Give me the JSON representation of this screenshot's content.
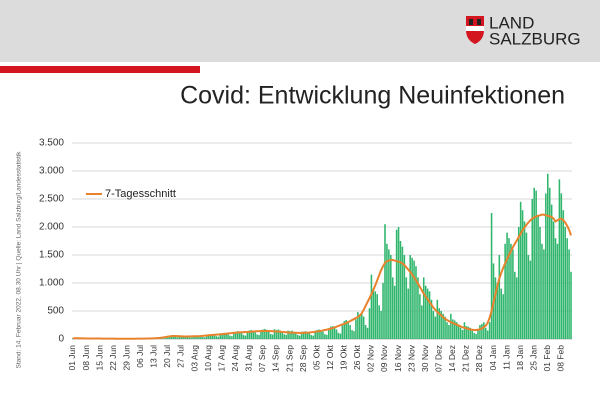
{
  "logo": {
    "line1": "LAND",
    "line2": "SALZBURG"
  },
  "source_note": "Stand: 14. Februar 2022, 08.30 Uhr | Quelle: Land Salzburg/Landesstatistik",
  "chart_data": {
    "type": "bar",
    "title": "Covid: Entwicklung Neuinfektionen",
    "color": "#2fb56c",
    "ylim": [
      0,
      3500
    ],
    "yticks": [
      0,
      500,
      {
        "value": 1000,
        "label": "1.000"
      },
      {
        "value": 1500,
        "label": "1.500"
      },
      {
        "value": 2000,
        "label": "2.000"
      },
      {
        "value": 2500,
        "label": "2.500"
      },
      {
        "value": 3000,
        "label": "3.000"
      },
      {
        "value": 3500,
        "label": "3.500"
      }
    ],
    "grid": true,
    "legend": "upper left",
    "categories": [
      "01 Jun",
      null,
      null,
      null,
      null,
      null,
      null,
      "08 Jun",
      null,
      null,
      null,
      null,
      null,
      null,
      "15 Jun",
      null,
      null,
      null,
      null,
      null,
      null,
      "22 Jun",
      null,
      null,
      null,
      null,
      null,
      null,
      "29 Jun",
      null,
      null,
      null,
      null,
      null,
      null,
      "06 Jul",
      null,
      null,
      null,
      null,
      null,
      null,
      "13 Jul",
      null,
      null,
      null,
      null,
      null,
      null,
      "20 Jul",
      null,
      null,
      null,
      null,
      null,
      null,
      "27 Jul",
      null,
      null,
      null,
      null,
      null,
      null,
      "03 Aug",
      null,
      null,
      null,
      null,
      null,
      null,
      "10 Aug",
      null,
      null,
      null,
      null,
      null,
      null,
      "17 Aug",
      null,
      null,
      null,
      null,
      null,
      null,
      "24 Aug",
      null,
      null,
      null,
      null,
      null,
      null,
      "31 Aug",
      null,
      null,
      null,
      null,
      null,
      null,
      "07 Sep",
      null,
      null,
      null,
      null,
      null,
      null,
      "14 Sep",
      null,
      null,
      null,
      null,
      null,
      null,
      "21 Sep",
      null,
      null,
      null,
      null,
      null,
      null,
      "28 Sep",
      null,
      null,
      null,
      null,
      null,
      null,
      "05 Okt",
      null,
      null,
      null,
      null,
      null,
      null,
      "12 Okt",
      null,
      null,
      null,
      null,
      null,
      null,
      "19 Okt",
      null,
      null,
      null,
      null,
      null,
      null,
      "26 Okt",
      null,
      null,
      null,
      null,
      null,
      null,
      "02 Nov",
      null,
      null,
      null,
      null,
      null,
      null,
      "09 Nov",
      null,
      null,
      null,
      null,
      null,
      null,
      "16 Nov",
      null,
      null,
      null,
      null,
      null,
      null,
      "23 Nov",
      null,
      null,
      null,
      null,
      null,
      null,
      "30 Nov",
      null,
      null,
      null,
      null,
      null,
      null,
      "07 Dez",
      null,
      null,
      null,
      null,
      null,
      null,
      "14 Dez",
      null,
      null,
      null,
      null,
      null,
      null,
      "21 Dez",
      null,
      null,
      null,
      null,
      null,
      null,
      "28 Dez",
      null,
      null,
      null,
      null,
      null,
      null,
      "04 Jan",
      null,
      null,
      null,
      null,
      null,
      null,
      "11 Jan",
      null,
      null,
      null,
      null,
      null,
      null,
      "18 Jan",
      null,
      null,
      null,
      null,
      null,
      null,
      "25 Jan",
      null,
      null,
      null,
      null,
      null,
      null,
      "01 Feb",
      null,
      null,
      null,
      null,
      null,
      null,
      "08 Feb",
      null,
      null,
      null,
      null,
      null
    ],
    "values": [
      18,
      20,
      15,
      12,
      8,
      6,
      14,
      12,
      14,
      10,
      9,
      6,
      4,
      8,
      9,
      10,
      8,
      7,
      5,
      3,
      6,
      7,
      8,
      6,
      5,
      4,
      3,
      5,
      6,
      7,
      5,
      6,
      4,
      3,
      6,
      8,
      10,
      9,
      8,
      6,
      5,
      12,
      18,
      22,
      25,
      20,
      14,
      10,
      30,
      55,
      60,
      70,
      50,
      35,
      30,
      65,
      60,
      55,
      50,
      45,
      30,
      25,
      50,
      55,
      60,
      58,
      50,
      35,
      30,
      60,
      75,
      80,
      85,
      70,
      50,
      40,
      80,
      100,
      110,
      105,
      90,
      60,
      50,
      110,
      130,
      140,
      125,
      110,
      70,
      60,
      140,
      150,
      160,
      145,
      120,
      80,
      70,
      160,
      170,
      180,
      165,
      140,
      90,
      80,
      175,
      160,
      170,
      150,
      130,
      85,
      75,
      150,
      140,
      150,
      130,
      110,
      70,
      60,
      130,
      130,
      140,
      125,
      105,
      70,
      60,
      140,
      160,
      170,
      160,
      130,
      85,
      75,
      175,
      220,
      230,
      210,
      170,
      110,
      95,
      240,
      320,
      340,
      300,
      250,
      160,
      140,
      350,
      480,
      420,
      450,
      400,
      250,
      200,
      550,
      1150,
      900,
      850,
      800,
      600,
      500,
      1000,
      2050,
      1700,
      1600,
      1500,
      1100,
      950,
      1950,
      2000,
      1750,
      1650,
      1500,
      1100,
      900,
      1500,
      1450,
      1400,
      1300,
      1100,
      800,
      600,
      1100,
      950,
      900,
      850,
      700,
      500,
      400,
      700,
      550,
      500,
      450,
      400,
      300,
      250,
      450,
      350,
      330,
      300,
      260,
      200,
      160,
      300,
      230,
      220,
      200,
      150,
      110,
      90,
      180,
      250,
      270,
      300,
      200,
      150,
      300,
      2250,
      1350,
      1100,
      1000,
      1500,
      900,
      800,
      1700,
      1900,
      1800,
      1700,
      1600,
      1200,
      1100,
      2000,
      2450,
      2300,
      2100,
      1900,
      1500,
      1400,
      2500,
      2700,
      2650,
      2200,
      2000,
      1700,
      1600,
      2600,
      2950,
      2700,
      2400,
      2100,
      1800,
      1700,
      2850,
      2600,
      2300,
      2000,
      1800,
      1600,
      1200
    ],
    "line": {
      "name": "7-Tagesschnitt",
      "color": "#e8822c",
      "values": [
        14,
        14,
        13,
        13,
        12,
        11,
        11,
        10,
        10,
        9,
        9,
        9,
        8,
        8,
        8,
        7,
        7,
        7,
        6,
        6,
        6,
        6,
        5,
        5,
        5,
        5,
        5,
        5,
        5,
        5,
        5,
        5,
        5,
        6,
        6,
        6,
        7,
        7,
        8,
        9,
        10,
        12,
        13,
        15,
        18,
        20,
        24,
        30,
        36,
        42,
        48,
        52,
        54,
        53,
        51,
        49,
        47,
        46,
        45,
        45,
        46,
        47,
        48,
        49,
        50,
        51,
        53,
        56,
        60,
        63,
        66,
        69,
        72,
        75,
        78,
        81,
        84,
        87,
        90,
        94,
        98,
        102,
        106,
        109,
        112,
        115,
        118,
        120,
        122,
        124,
        126,
        128,
        130,
        133,
        136,
        138,
        140,
        142,
        143,
        144,
        144,
        143,
        141,
        139,
        137,
        134,
        132,
        129,
        126,
        123,
        120,
        117,
        115,
        113,
        112,
        111,
        110,
        110,
        110,
        111,
        112,
        114,
        117,
        121,
        125,
        130,
        135,
        140,
        146,
        153,
        160,
        168,
        176,
        185,
        195,
        207,
        220,
        233,
        247,
        260,
        272,
        286,
        302,
        320,
        338,
        356,
        374,
        393,
        420,
        460,
        520,
        590,
        660,
        730,
        800,
        880,
        960,
        1050,
        1140,
        1230,
        1300,
        1360,
        1390,
        1400,
        1410,
        1410,
        1400,
        1390,
        1380,
        1370,
        1350,
        1320,
        1280,
        1240,
        1200,
        1150,
        1100,
        1050,
        990,
        930,
        870,
        810,
        760,
        710,
        660,
        610,
        560,
        520,
        480,
        450,
        420,
        390,
        360,
        340,
        320,
        300,
        285,
        270,
        255,
        240,
        225,
        210,
        200,
        190,
        180,
        170,
        165,
        160,
        160,
        165,
        175,
        190,
        210,
        240,
        290,
        380,
        500,
        650,
        800,
        950,
        1080,
        1180,
        1270,
        1350,
        1430,
        1500,
        1570,
        1640,
        1700,
        1760,
        1820,
        1880,
        1940,
        1990,
        2040,
        2080,
        2120,
        2150,
        2170,
        2190,
        2200,
        2210,
        2220,
        2220,
        2210,
        2200,
        2190,
        2180,
        2150,
        2100,
        2120,
        2140,
        2150,
        2120,
        2080,
        2020,
        1950,
        1850
      ]
    }
  }
}
